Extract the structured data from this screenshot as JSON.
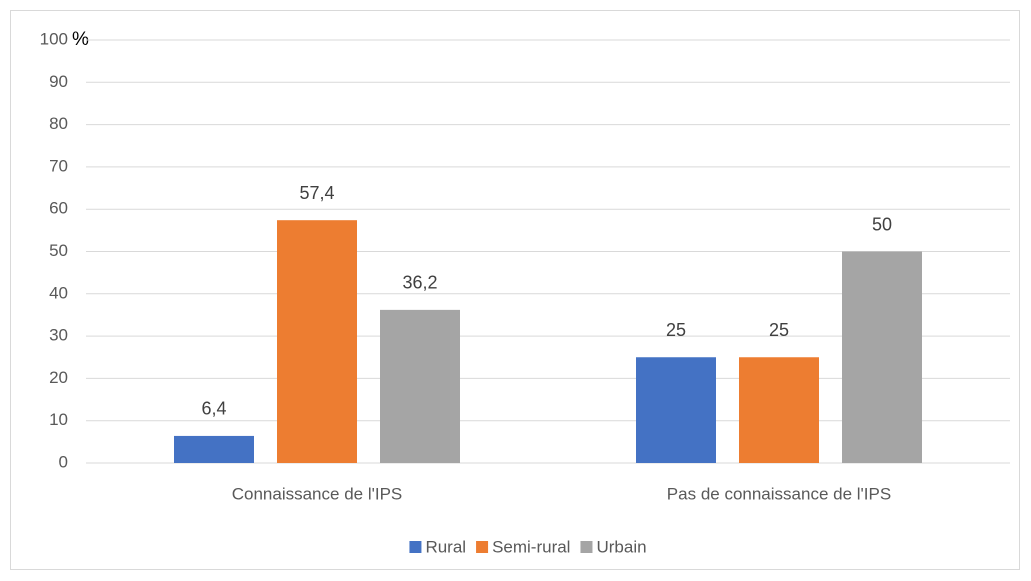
{
  "chart_data": {
    "type": "bar",
    "y_axis_label": "%",
    "categories": [
      "Connaissance de l'IPS",
      "Pas de connaissance de l'IPS"
    ],
    "series": [
      {
        "name": "Rural",
        "color": "#4472c4",
        "values": [
          6.4,
          25
        ],
        "value_labels": [
          "6,4",
          "25"
        ]
      },
      {
        "name": "Semi-rural",
        "color": "#ed7d31",
        "values": [
          57.4,
          25
        ],
        "value_labels": [
          "57,4",
          "25"
        ]
      },
      {
        "name": "Urbain",
        "color": "#a5a5a5",
        "values": [
          36.2,
          50
        ],
        "value_labels": [
          "36,2",
          "50"
        ]
      }
    ],
    "ylim": [
      0,
      100
    ],
    "yticks": [
      0,
      10,
      20,
      30,
      40,
      50,
      60,
      70,
      80,
      90,
      100
    ],
    "grid": true,
    "legend": "bottom"
  }
}
